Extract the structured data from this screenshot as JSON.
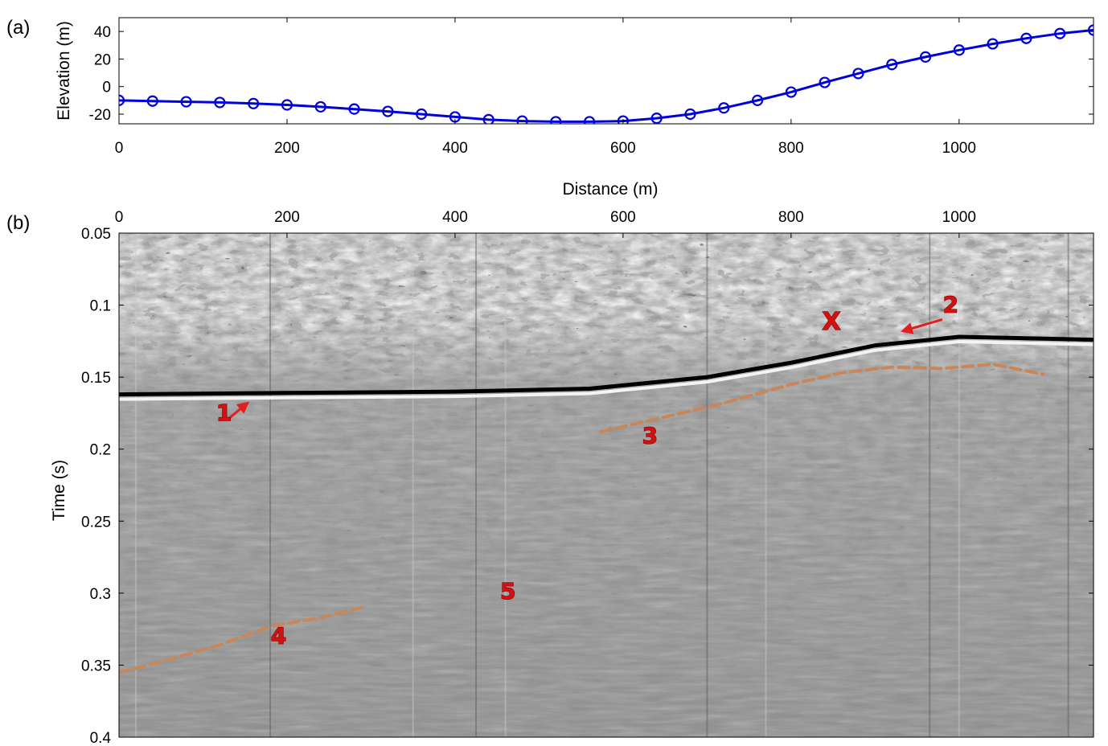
{
  "chart_data": [
    {
      "type": "line",
      "panel_label": "(a)",
      "xlabel": "Distance (m)",
      "ylabel": "Elevation (m)",
      "xlim": [
        0,
        1160
      ],
      "ylim": [
        -27,
        50
      ],
      "xticks": [
        0,
        200,
        400,
        600,
        800,
        1000
      ],
      "yticks": [
        -20,
        0,
        20,
        40
      ],
      "grid": false,
      "line_color": "#0000dd",
      "marker": "circle",
      "x": [
        0,
        40,
        80,
        120,
        160,
        200,
        240,
        280,
        320,
        360,
        400,
        440,
        480,
        520,
        560,
        600,
        640,
        680,
        720,
        760,
        800,
        840,
        880,
        920,
        960,
        1000,
        1040,
        1080,
        1120,
        1160
      ],
      "y": [
        -10,
        -10.5,
        -11,
        -11.5,
        -12.3,
        -13.3,
        -14.7,
        -16.3,
        -18,
        -20,
        -22,
        -24,
        -25,
        -25.5,
        -25.5,
        -25,
        -23,
        -20,
        -15.5,
        -10,
        -4,
        3,
        9.5,
        16,
        21.5,
        26.5,
        31,
        35,
        38.5,
        41
      ]
    },
    {
      "type": "heatmap",
      "panel_label": "(b)",
      "xlabel": "",
      "ylabel": "Time (s)",
      "xlim": [
        0,
        1160
      ],
      "ylim": [
        0.05,
        0.4
      ],
      "y_reversed": true,
      "x_axis_position": "top",
      "xticks": [
        0,
        200,
        400,
        600,
        800,
        1000
      ],
      "yticks": [
        0.05,
        0.1,
        0.15,
        0.2,
        0.25,
        0.3,
        0.35,
        0.4
      ],
      "colormap": "grayscale seismic section",
      "annotations": [
        {
          "text": "1",
          "x": 125,
          "y": 0.18,
          "color": "#d41010"
        },
        {
          "text": "2",
          "x": 990,
          "y": 0.105,
          "color": "#d41010"
        },
        {
          "text": "3",
          "x": 632,
          "y": 0.196,
          "color": "#d41010"
        },
        {
          "text": "4",
          "x": 190,
          "y": 0.335,
          "color": "#d41010"
        },
        {
          "text": "5",
          "x": 463,
          "y": 0.304,
          "color": "#d41010"
        },
        {
          "text": "X",
          "x": 848,
          "y": 0.117,
          "color": "#d41010"
        }
      ],
      "reflectors": [
        {
          "name": "reflector-1",
          "color": "#000000",
          "x": [
            0,
            200,
            400,
            560,
            700,
            800,
            900,
            1000,
            1160
          ],
          "y": [
            0.162,
            0.161,
            0.16,
            0.158,
            0.15,
            0.14,
            0.128,
            0.122,
            0.124
          ]
        },
        {
          "name": "reflector-3",
          "color": "#c8865a",
          "dashed": true,
          "x": [
            573,
            640,
            720,
            800,
            860,
            920,
            980,
            1040,
            1100
          ],
          "y": [
            0.188,
            0.179,
            0.168,
            0.155,
            0.147,
            0.143,
            0.144,
            0.141,
            0.148
          ]
        },
        {
          "name": "reflector-4",
          "color": "#c8865a",
          "dashed": true,
          "x": [
            0,
            60,
            120,
            180,
            240,
            290
          ],
          "y": [
            0.355,
            0.346,
            0.336,
            0.323,
            0.317,
            0.31
          ]
        }
      ],
      "arrows": [
        {
          "from": [
            130,
            0.179
          ],
          "to": [
            153,
            0.168
          ],
          "color": "#e02020"
        },
        {
          "from": [
            980,
            0.11
          ],
          "to": [
            933,
            0.118
          ],
          "color": "#e02020"
        }
      ]
    }
  ]
}
